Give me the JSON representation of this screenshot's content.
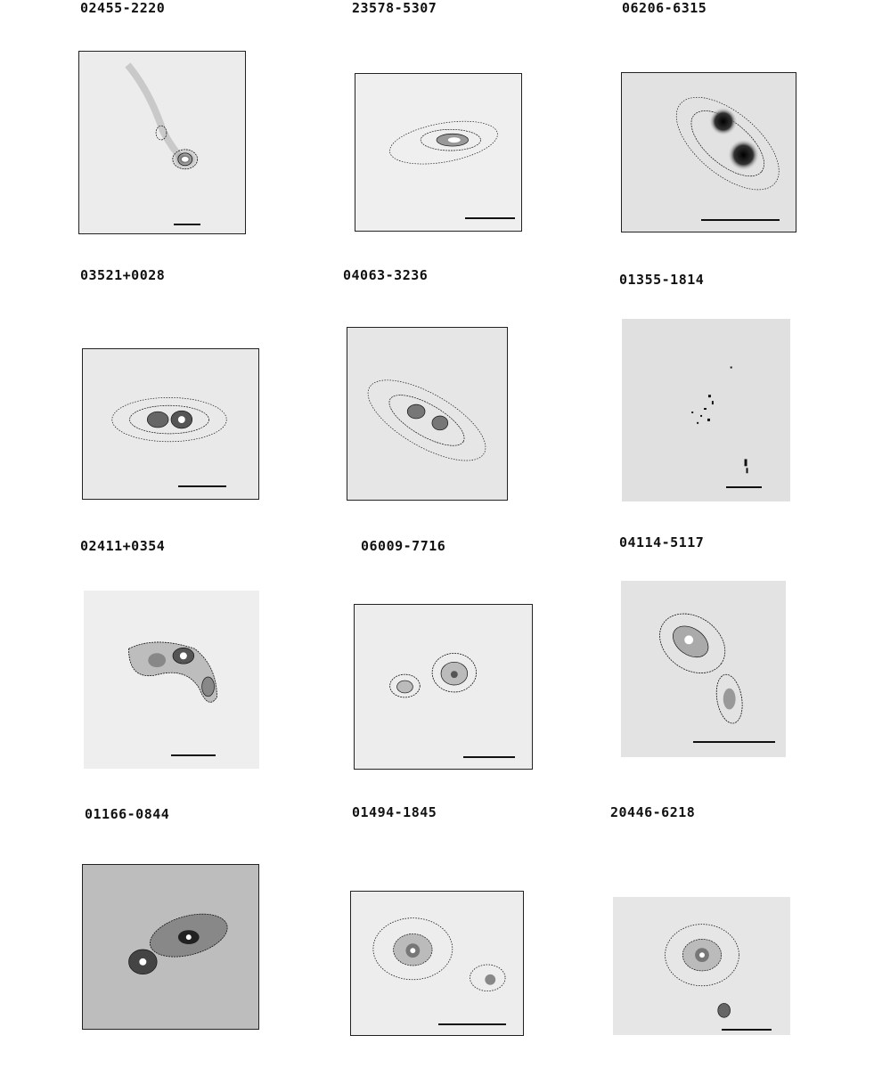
{
  "figure": {
    "panels": [
      {
        "id": "02455-2220"
      },
      {
        "id": "23578-5307"
      },
      {
        "id": "06206-6315"
      },
      {
        "id": "03521+0028"
      },
      {
        "id": "04063-3236"
      },
      {
        "id": "01355-1814"
      },
      {
        "id": "02411+0354"
      },
      {
        "id": "06009-7716"
      },
      {
        "id": "04114-5117"
      },
      {
        "id": "01166-0844"
      },
      {
        "id": "01494-1845"
      },
      {
        "id": "20446-6218"
      }
    ]
  },
  "colors": {
    "background": "#ffffff",
    "frame": "#222222",
    "title": "#111111",
    "contour": "#111111"
  },
  "icons": [
    "greyscale-galaxy-image",
    "contour-overlay",
    "scale-bar"
  ]
}
